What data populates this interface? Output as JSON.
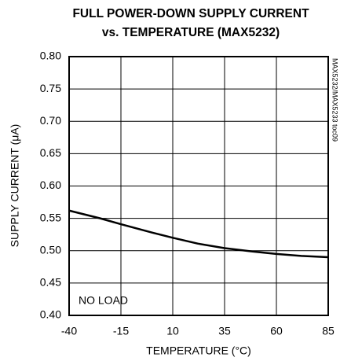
{
  "chart_data": {
    "type": "line",
    "title": [
      "FULL POWER-DOWN SUPPLY CURRENT",
      "vs. TEMPERATURE (MAX5232)"
    ],
    "x_label": "TEMPERATURE (°C)",
    "y_label": "SUPPLY CURRENT (μA)",
    "annotations": [
      "NO LOAD",
      "MAX5232/MAX5233 toc09"
    ],
    "x": [
      -40,
      -25,
      -15,
      0,
      10,
      22,
      35,
      48,
      60,
      72,
      85
    ],
    "series": [
      {
        "color": "#000000",
        "values": [
          0.562,
          0.55,
          0.541,
          0.528,
          0.52,
          0.511,
          0.504,
          0.499,
          0.495,
          0.492,
          0.49
        ]
      }
    ],
    "xlim": [
      -40,
      85
    ],
    "xticks": [
      -40,
      -15,
      10,
      35,
      60,
      85
    ],
    "ylim": [
      0.4,
      0.8
    ],
    "yticks": [
      {
        "value": 0.4,
        "label": "0.40"
      },
      0.45,
      {
        "value": 0.5,
        "label": "0.50"
      },
      0.55,
      {
        "value": 0.6,
        "label": "0.60"
      },
      0.65,
      {
        "value": 0.7,
        "label": "0.70"
      },
      0.75,
      {
        "value": 0.8,
        "label": "0.80"
      }
    ],
    "grid": true
  }
}
